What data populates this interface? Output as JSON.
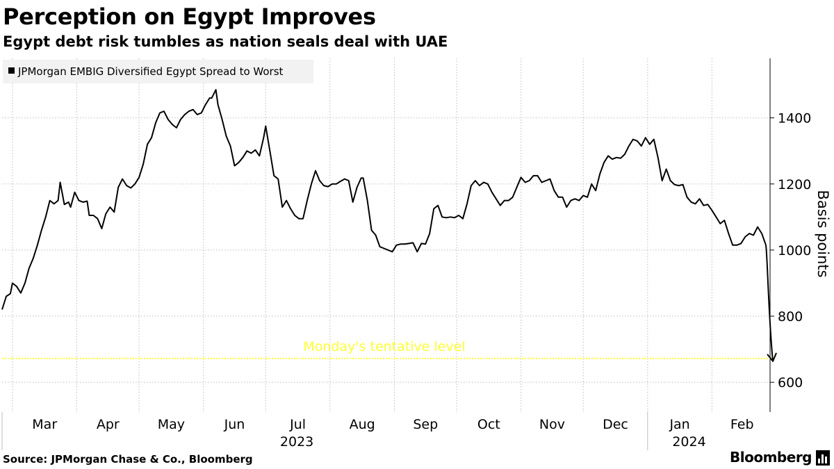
{
  "header": {
    "title": "Perception on Egypt Improves",
    "subtitle": "Egypt debt risk tumbles as nation seals deal with UAE"
  },
  "footer": {
    "source": "Source: JPMorgan Chase & Co., Bloomberg",
    "brand": "Bloomberg",
    "brand_icon": "bloomberg-terminal-icon"
  },
  "chart_data": {
    "type": "line",
    "ylabel": "Basis points",
    "ylim": [
      510,
      1580
    ],
    "yticks": [
      600,
      800,
      1000,
      1200,
      1400
    ],
    "grid": true,
    "legend_position": "top-left",
    "x_start": "2023-02-24",
    "x_end": "2024-02-29",
    "month_ticks": [
      {
        "label": "Mar",
        "date": "2023-03-01"
      },
      {
        "label": "Apr",
        "date": "2023-04-01"
      },
      {
        "label": "May",
        "date": "2023-05-01"
      },
      {
        "label": "Jun",
        "date": "2023-06-01"
      },
      {
        "label": "Jul",
        "date": "2023-07-01"
      },
      {
        "label": "Aug",
        "date": "2023-08-01"
      },
      {
        "label": "Sep",
        "date": "2023-09-01"
      },
      {
        "label": "Oct",
        "date": "2023-10-01"
      },
      {
        "label": "Nov",
        "date": "2023-11-01"
      },
      {
        "label": "Dec",
        "date": "2023-12-01"
      },
      {
        "label": "Jan",
        "date": "2024-01-01"
      },
      {
        "label": "Feb",
        "date": "2024-02-01"
      }
    ],
    "year_labels": [
      {
        "label": "2023",
        "date": "2023-07-16"
      },
      {
        "label": "2024",
        "date": "2024-01-21"
      }
    ],
    "year_separators": [
      "2023-01-01",
      "2024-01-01"
    ],
    "series": [
      {
        "name": "JPMorgan EMBIG Diversified Egypt Spread to Worst",
        "color": "#000000",
        "points": [
          [
            "2023-02-24",
            820
          ],
          [
            "2023-02-26",
            860
          ],
          [
            "2023-02-28",
            868
          ],
          [
            "2023-03-01",
            900
          ],
          [
            "2023-03-03",
            890
          ],
          [
            "2023-03-05",
            870
          ],
          [
            "2023-03-07",
            900
          ],
          [
            "2023-03-09",
            945
          ],
          [
            "2023-03-11",
            975
          ],
          [
            "2023-03-13",
            1015
          ],
          [
            "2023-03-15",
            1060
          ],
          [
            "2023-03-17",
            1100
          ],
          [
            "2023-03-19",
            1150
          ],
          [
            "2023-03-21",
            1140
          ],
          [
            "2023-03-23",
            1150
          ],
          [
            "2023-03-24",
            1205
          ],
          [
            "2023-03-26",
            1138
          ],
          [
            "2023-03-28",
            1145
          ],
          [
            "2023-03-29",
            1130
          ],
          [
            "2023-03-31",
            1175
          ],
          [
            "2023-04-02",
            1150
          ],
          [
            "2023-04-04",
            1145
          ],
          [
            "2023-04-06",
            1148
          ],
          [
            "2023-04-07",
            1105
          ],
          [
            "2023-04-09",
            1105
          ],
          [
            "2023-04-11",
            1095
          ],
          [
            "2023-04-13",
            1065
          ],
          [
            "2023-04-15",
            1110
          ],
          [
            "2023-04-17",
            1130
          ],
          [
            "2023-04-19",
            1115
          ],
          [
            "2023-04-21",
            1190
          ],
          [
            "2023-04-23",
            1215
          ],
          [
            "2023-04-25",
            1195
          ],
          [
            "2023-04-27",
            1188
          ],
          [
            "2023-04-29",
            1200
          ],
          [
            "2023-05-01",
            1220
          ],
          [
            "2023-05-03",
            1260
          ],
          [
            "2023-05-05",
            1320
          ],
          [
            "2023-05-07",
            1340
          ],
          [
            "2023-05-09",
            1385
          ],
          [
            "2023-05-11",
            1415
          ],
          [
            "2023-05-13",
            1420
          ],
          [
            "2023-05-15",
            1395
          ],
          [
            "2023-05-17",
            1380
          ],
          [
            "2023-05-19",
            1370
          ],
          [
            "2023-05-21",
            1395
          ],
          [
            "2023-05-23",
            1410
          ],
          [
            "2023-05-25",
            1420
          ],
          [
            "2023-05-27",
            1425
          ],
          [
            "2023-05-29",
            1410
          ],
          [
            "2023-05-31",
            1415
          ],
          [
            "2023-06-02",
            1440
          ],
          [
            "2023-06-04",
            1460
          ],
          [
            "2023-06-05",
            1460
          ],
          [
            "2023-06-07",
            1485
          ],
          [
            "2023-06-08",
            1440
          ],
          [
            "2023-06-10",
            1395
          ],
          [
            "2023-06-12",
            1345
          ],
          [
            "2023-06-14",
            1315
          ],
          [
            "2023-06-16",
            1255
          ],
          [
            "2023-06-18",
            1265
          ],
          [
            "2023-06-20",
            1280
          ],
          [
            "2023-06-22",
            1300
          ],
          [
            "2023-06-24",
            1293
          ],
          [
            "2023-06-26",
            1303
          ],
          [
            "2023-06-28",
            1285
          ],
          [
            "2023-06-30",
            1340
          ],
          [
            "2023-07-01",
            1375
          ],
          [
            "2023-07-03",
            1300
          ],
          [
            "2023-07-05",
            1225
          ],
          [
            "2023-07-07",
            1215
          ],
          [
            "2023-07-09",
            1130
          ],
          [
            "2023-07-11",
            1150
          ],
          [
            "2023-07-13",
            1125
          ],
          [
            "2023-07-15",
            1105
          ],
          [
            "2023-07-17",
            1095
          ],
          [
            "2023-07-19",
            1095
          ],
          [
            "2023-07-21",
            1150
          ],
          [
            "2023-07-23",
            1200
          ],
          [
            "2023-07-25",
            1240
          ],
          [
            "2023-07-27",
            1210
          ],
          [
            "2023-07-29",
            1195
          ],
          [
            "2023-07-31",
            1192
          ],
          [
            "2023-08-02",
            1200
          ],
          [
            "2023-08-04",
            1200
          ],
          [
            "2023-08-06",
            1208
          ],
          [
            "2023-08-08",
            1215
          ],
          [
            "2023-08-10",
            1210
          ],
          [
            "2023-08-12",
            1145
          ],
          [
            "2023-08-14",
            1190
          ],
          [
            "2023-08-16",
            1218
          ],
          [
            "2023-08-17",
            1218
          ],
          [
            "2023-08-19",
            1150
          ],
          [
            "2023-08-21",
            1060
          ],
          [
            "2023-08-23",
            1045
          ],
          [
            "2023-08-25",
            1010
          ],
          [
            "2023-08-27",
            1005
          ],
          [
            "2023-08-29",
            1000
          ],
          [
            "2023-08-31",
            995
          ],
          [
            "2023-09-02",
            1015
          ],
          [
            "2023-09-04",
            1018
          ],
          [
            "2023-09-06",
            1018
          ],
          [
            "2023-09-08",
            1020
          ],
          [
            "2023-09-10",
            1022
          ],
          [
            "2023-09-12",
            995
          ],
          [
            "2023-09-14",
            1020
          ],
          [
            "2023-09-16",
            1018
          ],
          [
            "2023-09-18",
            1050
          ],
          [
            "2023-09-20",
            1125
          ],
          [
            "2023-09-22",
            1135
          ],
          [
            "2023-09-24",
            1100
          ],
          [
            "2023-09-26",
            1098
          ],
          [
            "2023-09-28",
            1100
          ],
          [
            "2023-09-30",
            1098
          ],
          [
            "2023-10-02",
            1105
          ],
          [
            "2023-10-04",
            1095
          ],
          [
            "2023-10-06",
            1140
          ],
          [
            "2023-10-08",
            1195
          ],
          [
            "2023-10-10",
            1210
          ],
          [
            "2023-10-12",
            1195
          ],
          [
            "2023-10-14",
            1205
          ],
          [
            "2023-10-16",
            1200
          ],
          [
            "2023-10-18",
            1175
          ],
          [
            "2023-10-20",
            1155
          ],
          [
            "2023-10-22",
            1135
          ],
          [
            "2023-10-24",
            1150
          ],
          [
            "2023-10-26",
            1150
          ],
          [
            "2023-10-28",
            1160
          ],
          [
            "2023-10-30",
            1190
          ],
          [
            "2023-11-01",
            1220
          ],
          [
            "2023-11-03",
            1205
          ],
          [
            "2023-11-05",
            1210
          ],
          [
            "2023-11-07",
            1225
          ],
          [
            "2023-11-09",
            1225
          ],
          [
            "2023-11-11",
            1205
          ],
          [
            "2023-11-13",
            1210
          ],
          [
            "2023-11-15",
            1215
          ],
          [
            "2023-11-17",
            1180
          ],
          [
            "2023-11-19",
            1160
          ],
          [
            "2023-11-21",
            1160
          ],
          [
            "2023-11-23",
            1130
          ],
          [
            "2023-11-25",
            1150
          ],
          [
            "2023-11-27",
            1155
          ],
          [
            "2023-11-29",
            1150
          ],
          [
            "2023-12-01",
            1165
          ],
          [
            "2023-12-03",
            1160
          ],
          [
            "2023-12-05",
            1200
          ],
          [
            "2023-12-07",
            1180
          ],
          [
            "2023-12-09",
            1230
          ],
          [
            "2023-12-11",
            1265
          ],
          [
            "2023-12-13",
            1285
          ],
          [
            "2023-12-15",
            1275
          ],
          [
            "2023-12-17",
            1280
          ],
          [
            "2023-12-19",
            1278
          ],
          [
            "2023-12-21",
            1290
          ],
          [
            "2023-12-23",
            1315
          ],
          [
            "2023-12-25",
            1335
          ],
          [
            "2023-12-27",
            1330
          ],
          [
            "2023-12-29",
            1315
          ],
          [
            "2023-12-31",
            1340
          ],
          [
            "2024-01-02",
            1320
          ],
          [
            "2024-01-04",
            1335
          ],
          [
            "2024-01-06",
            1280
          ],
          [
            "2024-01-08",
            1210
          ],
          [
            "2024-01-10",
            1245
          ],
          [
            "2024-01-12",
            1210
          ],
          [
            "2024-01-14",
            1198
          ],
          [
            "2024-01-16",
            1195
          ],
          [
            "2024-01-18",
            1198
          ],
          [
            "2024-01-20",
            1160
          ],
          [
            "2024-01-22",
            1145
          ],
          [
            "2024-01-24",
            1140
          ],
          [
            "2024-01-26",
            1155
          ],
          [
            "2024-01-28",
            1135
          ],
          [
            "2024-01-30",
            1138
          ],
          [
            "2024-02-01",
            1120
          ],
          [
            "2024-02-03",
            1100
          ],
          [
            "2024-02-05",
            1080
          ],
          [
            "2024-02-07",
            1090
          ],
          [
            "2024-02-09",
            1050
          ],
          [
            "2024-02-11",
            1015
          ],
          [
            "2024-02-13",
            1015
          ],
          [
            "2024-02-15",
            1020
          ],
          [
            "2024-02-17",
            1040
          ],
          [
            "2024-02-19",
            1050
          ],
          [
            "2024-02-21",
            1045
          ],
          [
            "2024-02-23",
            1070
          ],
          [
            "2024-02-25",
            1050
          ],
          [
            "2024-02-27",
            1015
          ]
        ]
      }
    ],
    "annotation": {
      "label": "Monday's tentative level",
      "value": 672,
      "color": "#ffff33"
    }
  }
}
